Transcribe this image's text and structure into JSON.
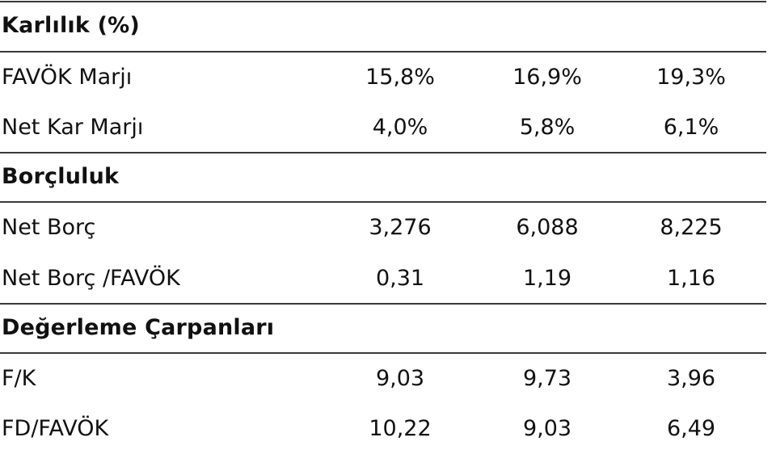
{
  "sections": [
    {
      "title": "Karlılık (%)",
      "rows": [
        {
          "label": "FAVÖK Marjı",
          "values": [
            "15,8%",
            "16,9%",
            "19,3%"
          ]
        },
        {
          "label": "Net Kar Marjı",
          "values": [
            "4,0%",
            "5,8%",
            "6,1%"
          ]
        }
      ]
    },
    {
      "title": "Borçluluk",
      "rows": [
        {
          "label": "Net Borç",
          "values": [
            "3,276",
            "6,088",
            "8,225"
          ]
        },
        {
          "label": "Net Borç /FAVÖK",
          "values": [
            "0,31",
            "1,19",
            "1,16"
          ]
        }
      ]
    },
    {
      "title": "Değerleme Çarpanları",
      "rows": [
        {
          "label": "F/K",
          "values": [
            "9,03",
            "9,73",
            "3,96"
          ]
        },
        {
          "label": "FD/FAVÖK",
          "values": [
            "10,22",
            "9,03",
            "6,49"
          ]
        }
      ]
    }
  ]
}
